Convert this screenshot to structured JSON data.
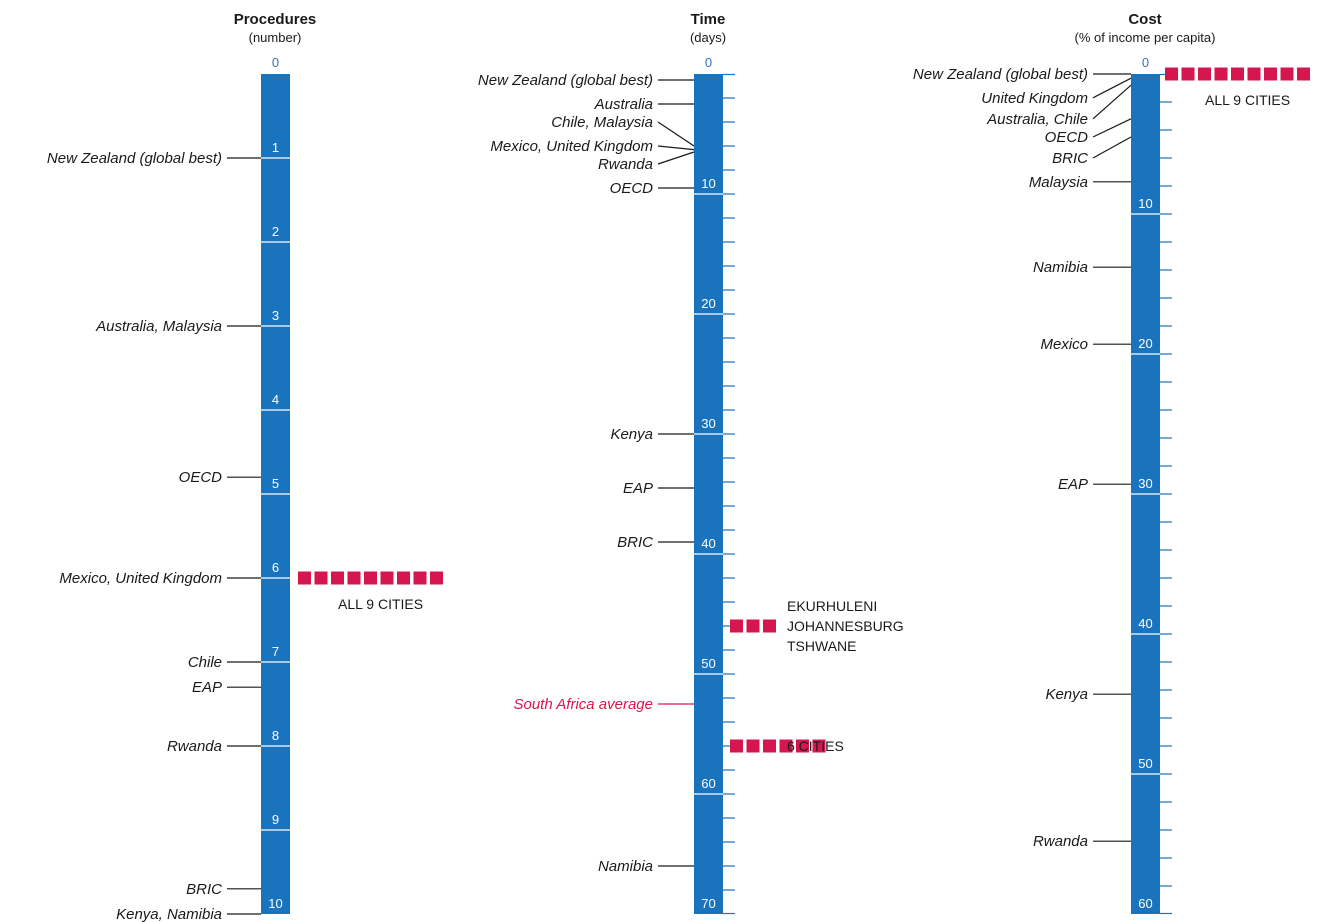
{
  "chart_data": [
    {
      "type": "scale",
      "title": "Procedures",
      "subtitle": "(number)",
      "ylim": [
        0,
        10
      ],
      "tick_labels": [
        "0",
        "1",
        "2",
        "3",
        "4",
        "5",
        "6",
        "7",
        "8",
        "9",
        "10"
      ],
      "minor_ticks": false,
      "colors": {
        "bar": "#1a73bd",
        "marker": "#d6174f",
        "text": "#1a1a1a"
      },
      "benchmarks": [
        {
          "label": "New Zealand (global best)",
          "value": 1
        },
        {
          "label": "Australia, Malaysia",
          "value": 3
        },
        {
          "label": "OECD",
          "value": 4.8
        },
        {
          "label": "Mexico, United Kingdom",
          "value": 6
        },
        {
          "label": "Chile",
          "value": 7
        },
        {
          "label": "EAP",
          "value": 7.3
        },
        {
          "label": "Rwanda",
          "value": 8
        },
        {
          "label": "BRIC",
          "value": 9.7
        },
        {
          "label": "Kenya, Namibia",
          "value": 10
        }
      ],
      "cities": [
        {
          "value": 6,
          "count": 9,
          "labels": [
            "ALL 9 CITIES"
          ]
        }
      ]
    },
    {
      "type": "scale",
      "title": "Time",
      "subtitle": "(days)",
      "ylim": [
        0,
        70
      ],
      "tick_labels": [
        "0",
        "10",
        "20",
        "30",
        "40",
        "50",
        "60",
        "70"
      ],
      "minor_ticks": true,
      "colors": {
        "bar": "#1a73bd",
        "marker": "#d6174f",
        "text": "#1a1a1a"
      },
      "benchmarks": [
        {
          "label": "New Zealand (global best)",
          "value": 0.5,
          "target": 0.5
        },
        {
          "label": "Australia",
          "value": 2.5,
          "target": 2.5
        },
        {
          "label": "Chile, Malaysia",
          "value": 4,
          "target": 6
        },
        {
          "label": "Mexico, United Kingdom",
          "value": 6,
          "target": 6.3
        },
        {
          "label": "Rwanda",
          "value": 7.5,
          "target": 6.5
        },
        {
          "label": "OECD",
          "value": 9.5,
          "target": 9.5
        },
        {
          "label": "Kenya",
          "value": 30,
          "target": 30
        },
        {
          "label": "EAP",
          "value": 34.5,
          "target": 34.5
        },
        {
          "label": "BRIC",
          "value": 39,
          "target": 39
        },
        {
          "label": "South Africa average",
          "value": 52.5,
          "target": 52.5,
          "highlight": true
        },
        {
          "label": "Namibia",
          "value": 66,
          "target": 66
        }
      ],
      "cities": [
        {
          "value": 46,
          "count": 3,
          "labels": [
            "EKURHULENI",
            "JOHANNESBURG",
            "TSHWANE"
          ]
        },
        {
          "value": 56,
          "count": 6,
          "labels": [
            "6 CITIES"
          ]
        }
      ]
    },
    {
      "type": "scale",
      "title": "Cost",
      "subtitle": "(% of income per capita)",
      "ylim": [
        0,
        60
      ],
      "tick_labels": [
        "0",
        "10",
        "20",
        "30",
        "40",
        "50",
        "60"
      ],
      "minor_ticks": true,
      "colors": {
        "bar": "#1a73bd",
        "marker": "#d6174f",
        "text": "#1a1a1a"
      },
      "benchmarks": [
        {
          "label": "New Zealand (global best)",
          "value": 0,
          "target": 0
        },
        {
          "label": "United Kingdom",
          "value": 1.7,
          "target": 0.3
        },
        {
          "label": "Australia, Chile",
          "value": 3.2,
          "target": 0.8
        },
        {
          "label": "OECD",
          "value": 4.5,
          "target": 3.2
        },
        {
          "label": "BRIC",
          "value": 6,
          "target": 4.5
        },
        {
          "label": "Malaysia",
          "value": 7.7,
          "target": 7.7
        },
        {
          "label": "Namibia",
          "value": 13.8,
          "target": 13.8
        },
        {
          "label": "Mexico",
          "value": 19.3,
          "target": 19.3
        },
        {
          "label": "EAP",
          "value": 29.3,
          "target": 29.3
        },
        {
          "label": "Kenya",
          "value": 44.3,
          "target": 44.3
        },
        {
          "label": "Rwanda",
          "value": 54.8,
          "target": 54.8
        }
      ],
      "cities": [
        {
          "value": 0,
          "count": 9,
          "labels": [
            "ALL 9 CITIES"
          ]
        }
      ]
    }
  ]
}
